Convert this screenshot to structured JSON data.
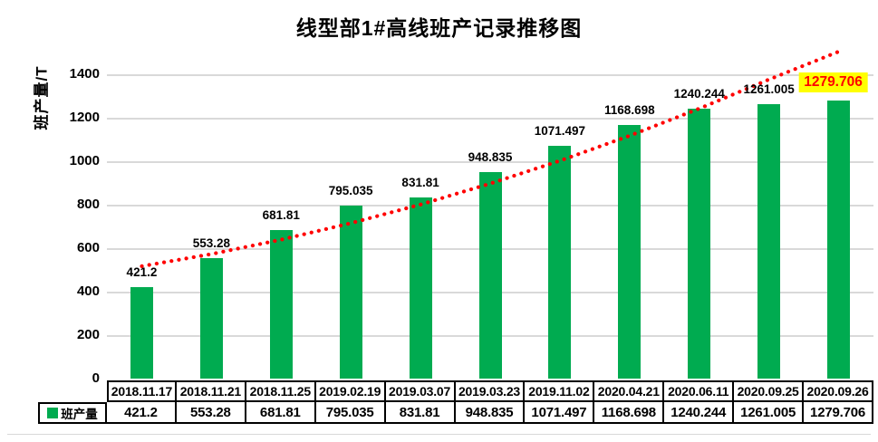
{
  "title": "线型部1#高线班产记录推移图",
  "y_axis_label": "班产量/T",
  "legend_label": "班产量",
  "colors": {
    "bar": "#00AB50",
    "trend": "#FF0000",
    "highlight_bg": "#FFFF00",
    "highlight_text": "#FF0000",
    "gridline": "#D9D9D9",
    "table_border": "#000000",
    "label_text": "#000000"
  },
  "chart_data": {
    "type": "bar",
    "title": "线型部1#高线班产记录推移图",
    "xlabel": "",
    "ylabel": "班产量/T",
    "ylim": [
      0,
      1500
    ],
    "yticks": [
      0,
      200,
      400,
      600,
      800,
      1000,
      1200,
      1400
    ],
    "grid": true,
    "legend_position": "table-left",
    "categories": [
      "2018.11.17",
      "2018.11.21",
      "2018.11.25",
      "2019.02.19",
      "2019.03.07",
      "2019.03.23",
      "2019.11.02",
      "2020.04.21",
      "2020.06.11",
      "2020.09.25",
      "2020.09.26"
    ],
    "series": [
      {
        "name": "班产量",
        "values": [
          421.2,
          553.28,
          681.81,
          795.035,
          831.81,
          948.835,
          1071.497,
          1168.698,
          1240.244,
          1261.005,
          1279.706
        ]
      }
    ],
    "data_labels": [
      "421.2",
      "553.28",
      "681.81",
      "795.035",
      "831.81",
      "948.835",
      "1071.497",
      "1168.698",
      "1240.244",
      "1261.005",
      "1279.706"
    ],
    "highlighted_label_index": 10,
    "trendline": {
      "style": "dotted",
      "color": "#FF0000",
      "values": [
        517,
        573,
        639,
        715,
        801,
        897,
        1002,
        1117,
        1242,
        1376,
        1504
      ]
    }
  }
}
